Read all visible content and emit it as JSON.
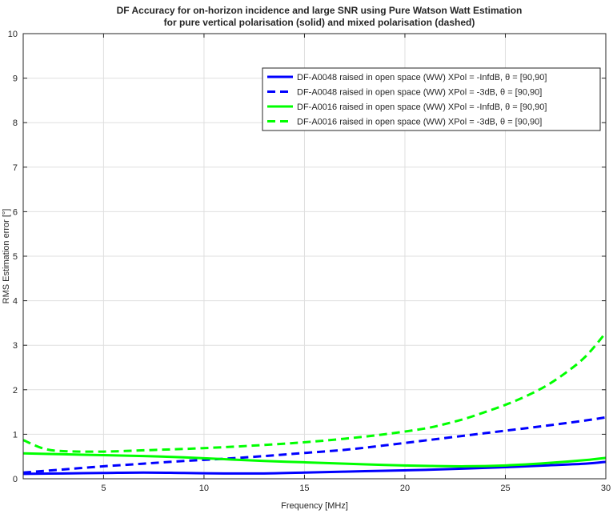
{
  "chart_data": {
    "type": "line",
    "title": "DF Accuracy for on-horizon incidence and large SNR using Pure Watson Watt Estimation",
    "subtitle": "for pure vertical polarisation (solid) and mixed polarisation (dashed)",
    "xlabel": "Frequency [MHz]",
    "ylabel": "RMS Estimation error [°]",
    "xlim": [
      1,
      30
    ],
    "ylim": [
      0,
      10
    ],
    "xticks": [
      5,
      10,
      15,
      20,
      25,
      30
    ],
    "yticks": [
      0,
      1,
      2,
      3,
      4,
      5,
      6,
      7,
      8,
      9,
      10
    ],
    "grid": true,
    "legend_position": "top-right",
    "series": [
      {
        "name": "DF-A0048 raised in open space (WW) XPol = -InfdB, θ = [90,90]",
        "color": "#0000ff",
        "style": "solid",
        "x": [
          1,
          3,
          5,
          7,
          9,
          11,
          13,
          15,
          17,
          19,
          21,
          23,
          25,
          27,
          29,
          30
        ],
        "y": [
          0.11,
          0.12,
          0.13,
          0.14,
          0.13,
          0.12,
          0.12,
          0.14,
          0.16,
          0.18,
          0.2,
          0.23,
          0.26,
          0.3,
          0.34,
          0.38
        ]
      },
      {
        "name": "DF-A0048 raised in open space (WW) XPol = -3dB, θ = [90,90]",
        "color": "#0000ff",
        "style": "dashed",
        "x": [
          1,
          3,
          5,
          7,
          9,
          11,
          13,
          15,
          17,
          19,
          21,
          23,
          25,
          27,
          29,
          30
        ],
        "y": [
          0.14,
          0.21,
          0.28,
          0.34,
          0.4,
          0.45,
          0.51,
          0.58,
          0.65,
          0.75,
          0.86,
          0.97,
          1.08,
          1.19,
          1.31,
          1.38
        ]
      },
      {
        "name": "DF-A0016 raised in open space (WW) XPol = -InfdB, θ = [90,90]",
        "color": "#00ff00",
        "style": "solid",
        "x": [
          1,
          3,
          5,
          7,
          9,
          11,
          13,
          15,
          17,
          19,
          21,
          23,
          25,
          27,
          29,
          30
        ],
        "y": [
          0.57,
          0.55,
          0.53,
          0.51,
          0.48,
          0.44,
          0.4,
          0.37,
          0.34,
          0.31,
          0.29,
          0.28,
          0.3,
          0.35,
          0.42,
          0.47
        ]
      },
      {
        "name": "DF-A0016 raised in open space (WW) XPol = -3dB, θ = [90,90]",
        "color": "#00ff00",
        "style": "dashed",
        "x": [
          1,
          2,
          3,
          5,
          7,
          9,
          11,
          13,
          15,
          17,
          19,
          21,
          22,
          23,
          24,
          25,
          26,
          27,
          28,
          29,
          30
        ],
        "y": [
          0.87,
          0.68,
          0.62,
          0.61,
          0.64,
          0.67,
          0.71,
          0.76,
          0.82,
          0.9,
          1.0,
          1.13,
          1.23,
          1.35,
          1.5,
          1.66,
          1.85,
          2.08,
          2.38,
          2.75,
          3.28
        ]
      }
    ]
  }
}
